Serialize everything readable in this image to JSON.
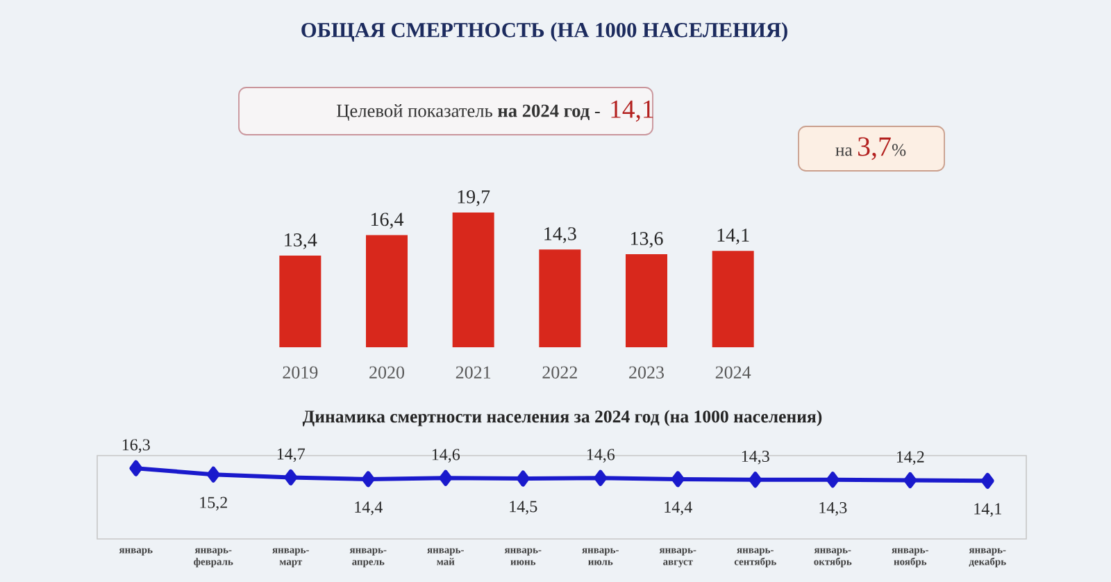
{
  "chart_data": [
    {
      "type": "bar",
      "title": "ОБЩАЯ СМЕРТНОСТЬ (НА 1000 НАСЕЛЕНИЯ)",
      "categories": [
        "2019",
        "2020",
        "2021",
        "2022",
        "2023",
        "2024"
      ],
      "values": [
        13.4,
        16.4,
        19.7,
        14.3,
        13.6,
        14.1
      ],
      "value_labels": [
        "13,4",
        "16,4",
        "19,7",
        "14,3",
        "13,6",
        "14,1"
      ],
      "color": "#d8281c",
      "tick_labels": "x",
      "annotations": [
        "Целевой показатель **на 2024 год** -",
        "14,1",
        "на **3,7**%"
      ]
    },
    {
      "type": "line",
      "title": "Динамика смертности населения за 2024 год (на 1000 населения)",
      "categories": [
        "январь",
        "январь-февраль",
        "январь-март",
        "январь-апрель",
        "январь-май",
        "январь-июнь",
        "январь-июль",
        "январь-август",
        "январь-сентябрь",
        "январь-октябрь",
        "январь-ноябрь",
        "январь-декабрь"
      ],
      "values": [
        16.3,
        15.2,
        14.7,
        14.4,
        14.6,
        14.5,
        14.6,
        14.4,
        14.3,
        14.3,
        14.2,
        14.1
      ],
      "value_labels": [
        "16,3",
        "15,2",
        "14,7",
        "14,4",
        "14,6",
        "14,5",
        "14,6",
        "14,4",
        "14,3",
        "14,3",
        "14,2",
        "14,1"
      ],
      "color": "#1a1acc",
      "marker": "diamond",
      "tick_labels": "x"
    }
  ]
}
